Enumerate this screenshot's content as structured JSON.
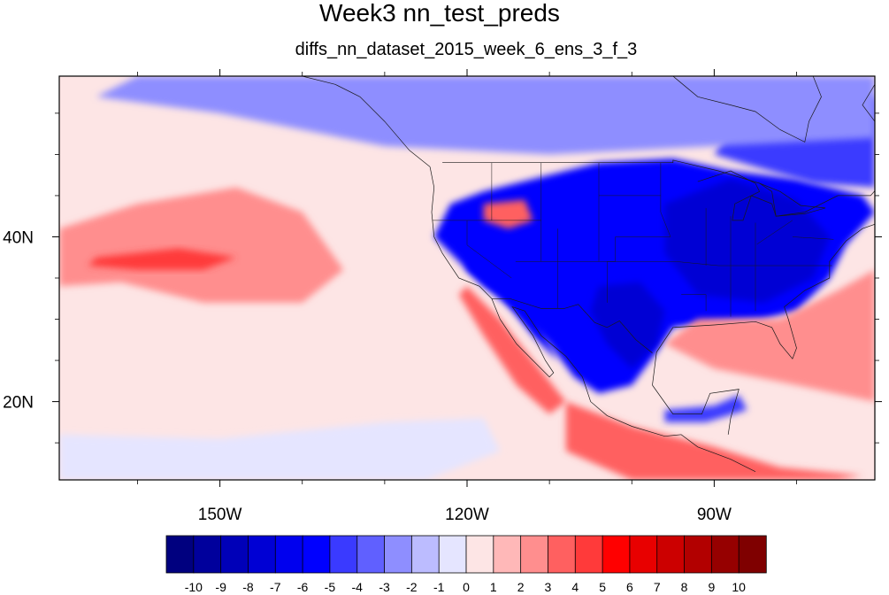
{
  "figure": {
    "title": "Week3 nn_test_preds",
    "subtitle": "diffs_nn_dataset_2015_week_6_ens_3_f_3"
  },
  "map": {
    "projection": "cylindrical equidistant",
    "lon_range": [
      -169.5,
      -70.5
    ],
    "lat_range": [
      10.5,
      59.5
    ],
    "x_ticks": [
      {
        "lon": -150,
        "label": "150W"
      },
      {
        "lon": -120,
        "label": "120W"
      },
      {
        "lon": -90,
        "label": "90W"
      }
    ],
    "y_ticks": [
      {
        "lat": 20,
        "label": "20N"
      },
      {
        "lat": 40,
        "label": "40N"
      }
    ],
    "minor_x_ticks": [
      -160,
      -140,
      -130,
      -110,
      -100,
      -80
    ],
    "minor_y_ticks": [
      15,
      25,
      30,
      35,
      45,
      50,
      55
    ],
    "background_color": "#fde5e5",
    "coastlines": true,
    "us_state_boundaries": true
  },
  "chart_data": {
    "type": "heatmap",
    "field": "Week3 nn_test_preds",
    "contour_levels": [
      -10,
      -9,
      -8,
      -7,
      -6,
      -5,
      -4,
      -3,
      -2,
      -1,
      0,
      1,
      2,
      3,
      4,
      5,
      6,
      7,
      8,
      9,
      10
    ],
    "colors": [
      "#00007f",
      "#00009c",
      "#0000b8",
      "#0000d4",
      "#0000ee",
      "#0000ff",
      "#3a3aff",
      "#6060ff",
      "#8e8eff",
      "#bcbcff",
      "#e5e5ff",
      "#fde5e5",
      "#ffb8b8",
      "#ff8e8e",
      "#ff6060",
      "#ff3a3a",
      "#ff0000",
      "#e80000",
      "#cc0000",
      "#b20000",
      "#960000",
      "#7f0000"
    ],
    "regions": [
      {
        "name": "continental US cold anomaly",
        "value": -6
      },
      {
        "name": "east-central US core",
        "value": -8
      },
      {
        "name": "Texas core",
        "value": -8
      },
      {
        "name": "southwest US / Baja",
        "value": -6
      },
      {
        "name": "eastern Canada",
        "value": -5
      },
      {
        "name": "northwest Canada",
        "value": -3
      },
      {
        "name": "Caribbean cold patch",
        "value": -5
      },
      {
        "name": "Florida & Gulf warm patch",
        "value": 3
      },
      {
        "name": "subtropical Atlantic warm band",
        "value": 2
      },
      {
        "name": "northeast Pacific warm band",
        "value": 2
      },
      {
        "name": "Pacific warm core",
        "value": 4
      },
      {
        "name": "Idaho warm spot",
        "value": 3
      },
      {
        "name": "Baja / Pacific coast warm patch",
        "value": 3
      },
      {
        "name": "Central America / Caribbean warm",
        "value": 3
      },
      {
        "name": "tropical Pacific",
        "value": -1
      }
    ]
  },
  "colorbar": {
    "labels": [
      "-10",
      "-9",
      "-8",
      "-7",
      "-6",
      "-5",
      "-4",
      "-3",
      "-2",
      "-1",
      "0",
      "1",
      "2",
      "3",
      "4",
      "5",
      "6",
      "7",
      "8",
      "9",
      "10"
    ]
  }
}
